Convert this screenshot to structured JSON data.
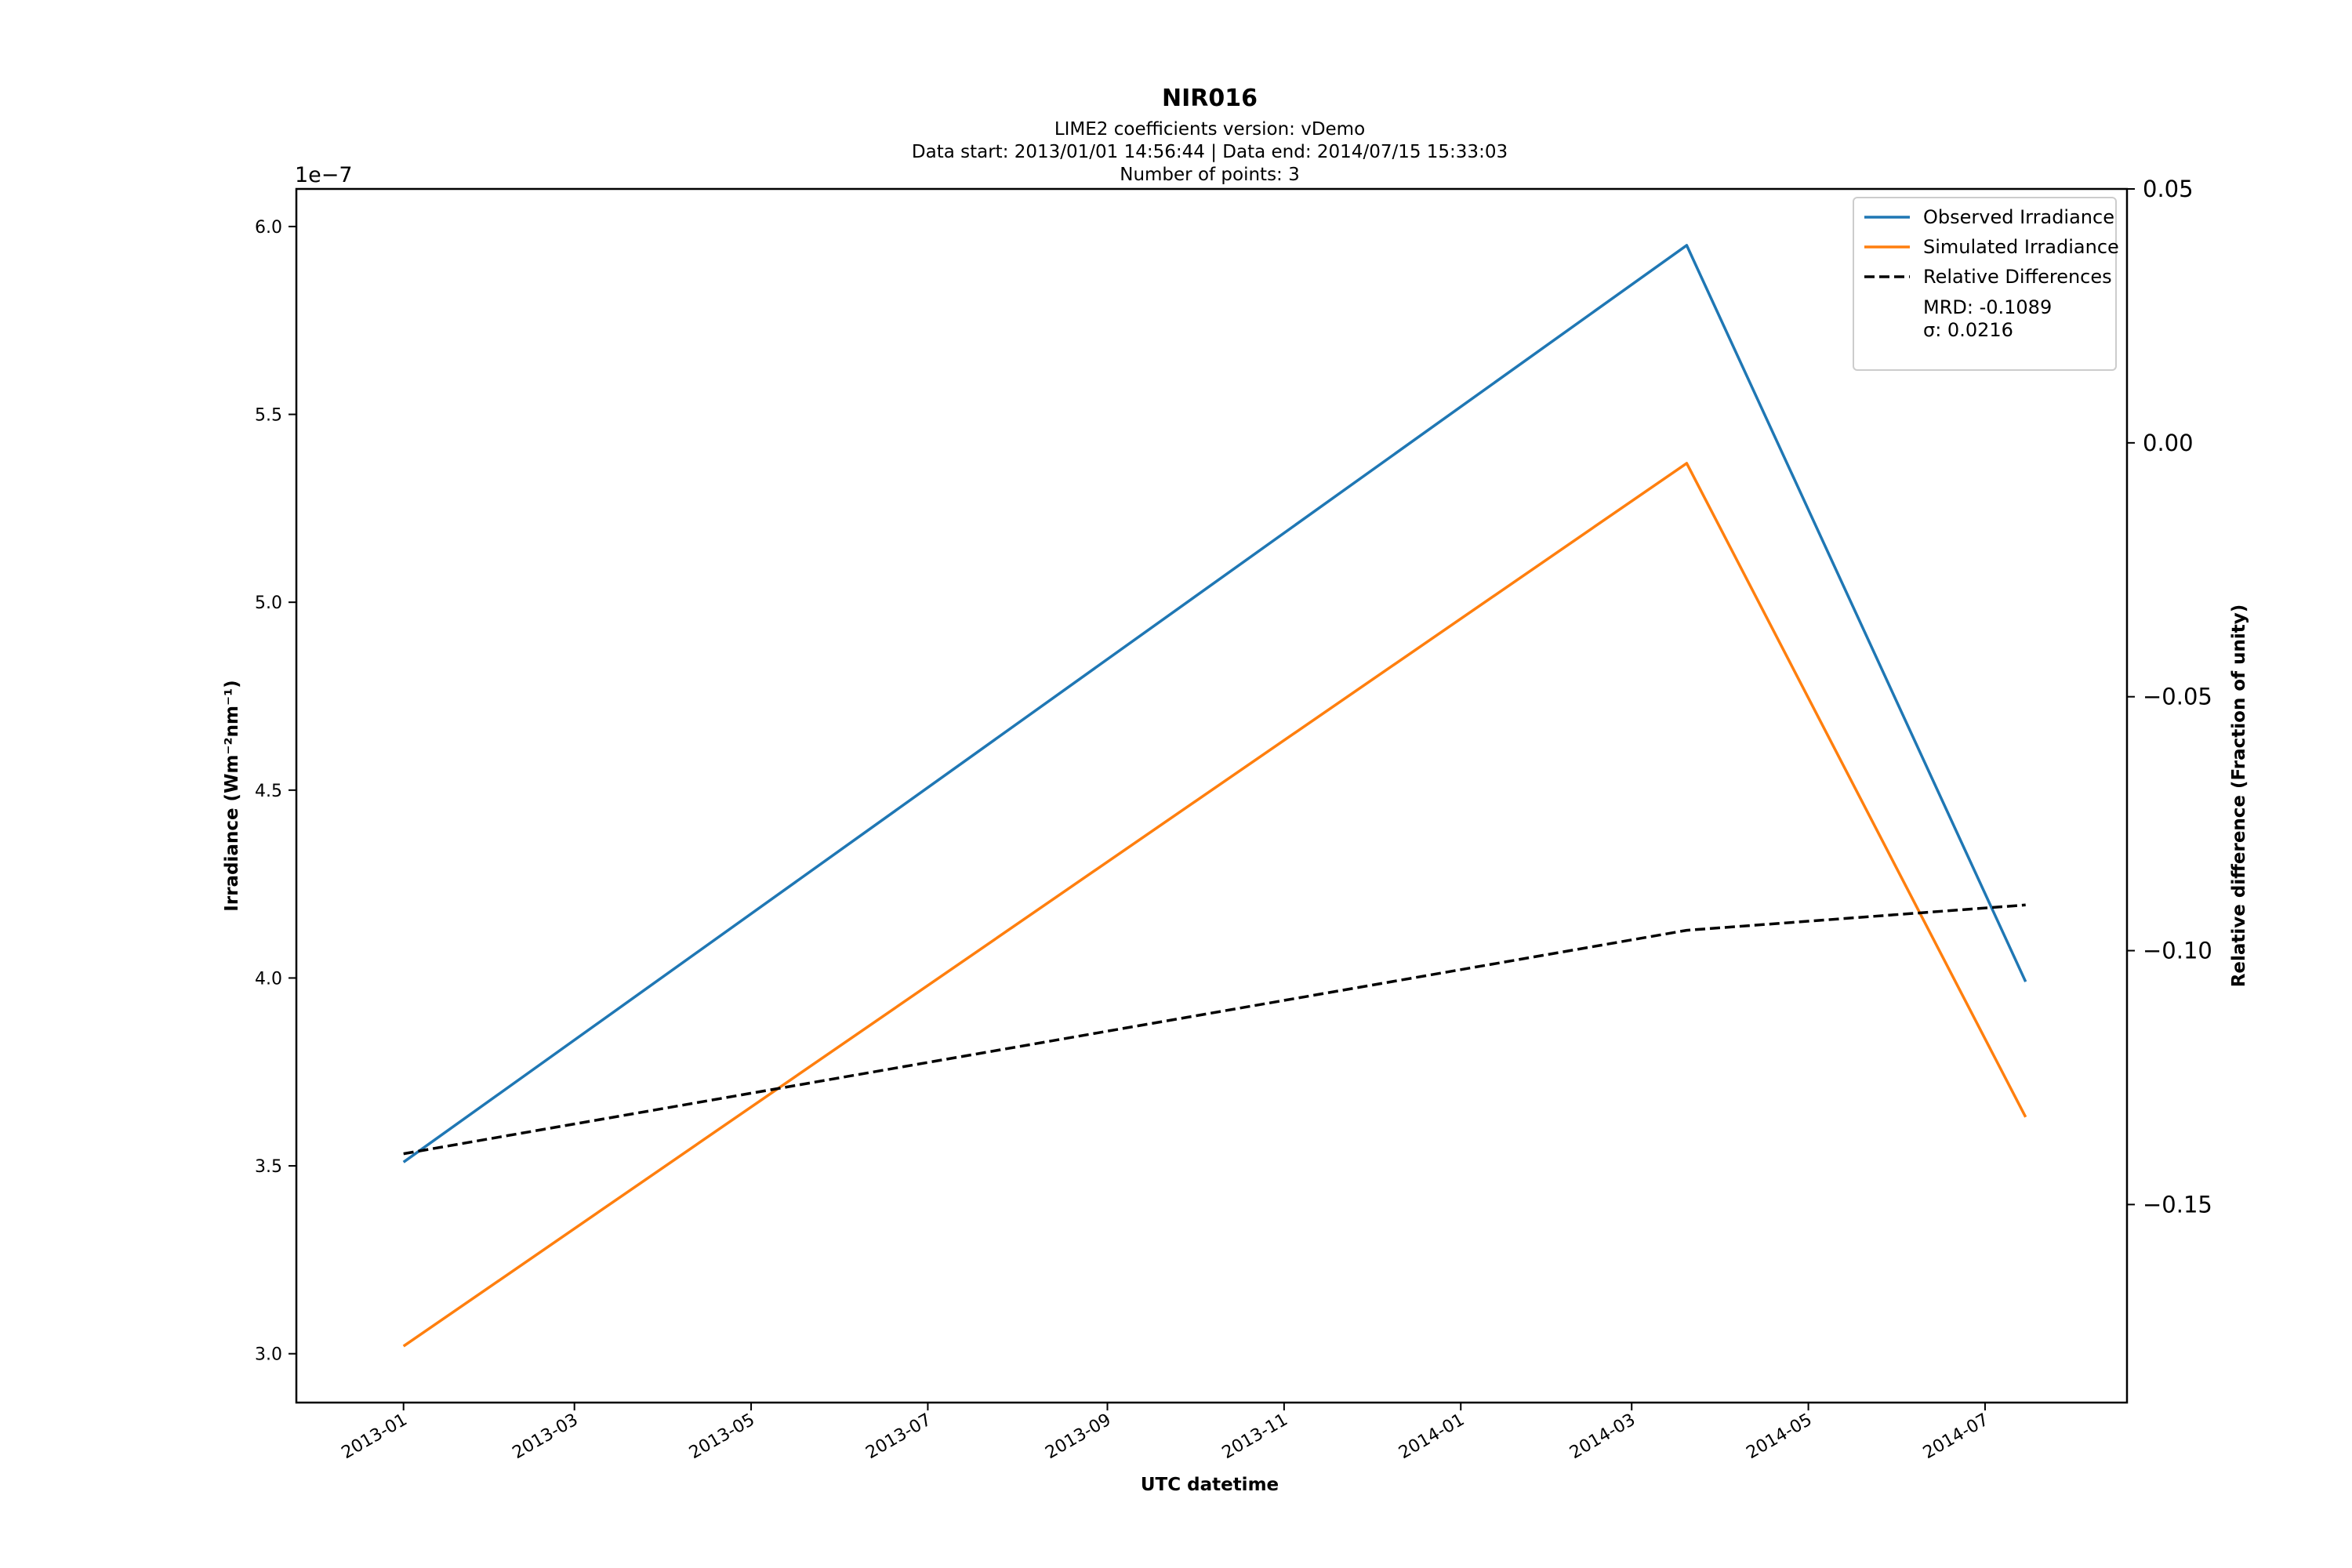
{
  "chart_data": {
    "type": "line",
    "title": "NIR016",
    "subtitle_lines": [
      "LIME2 coefficients version: vDemo",
      "Data start: 2013/01/01 14:56:44 | Data end: 2014/07/15 15:33:03",
      "Number of points: 3"
    ],
    "xlabel": "UTC datetime",
    "ylabel": "Irradiance (Wm⁻²nm⁻¹)",
    "ylabel_right": "Relative difference (Fraction of unity)",
    "y_offset_label": "1e−7",
    "x": [
      "2013-01-01",
      "2014-03-20",
      "2014-07-15"
    ],
    "x_tick_labels": [
      "2013-01",
      "2013-03",
      "2013-05",
      "2013-07",
      "2013-09",
      "2013-11",
      "2014-01",
      "2014-03",
      "2014-05",
      "2014-07"
    ],
    "x_tick_dates": [
      "2013-01-01",
      "2013-03-01",
      "2013-05-01",
      "2013-07-01",
      "2013-09-01",
      "2013-11-01",
      "2014-01-01",
      "2014-03-01",
      "2014-05-01",
      "2014-07-01"
    ],
    "xlim": [
      "2012-11-25",
      "2014-08-19"
    ],
    "ylim": [
      2.87,
      6.1
    ],
    "y_ticks": [
      3.0,
      3.5,
      4.0,
      4.5,
      5.0,
      5.5,
      6.0
    ],
    "y_tick_labels": [
      "3.0",
      "3.5",
      "4.0",
      "4.5",
      "5.0",
      "5.5",
      "6.0"
    ],
    "ylim_right": [
      -0.189,
      0.05
    ],
    "y_ticks_right": [
      -0.15,
      -0.1,
      -0.05,
      0.0,
      0.05
    ],
    "y_tick_labels_right": [
      "−0.15",
      "−0.10",
      "−0.05",
      "0.00",
      "0.05"
    ],
    "series": [
      {
        "name": "Observed Irradiance",
        "axis": "left",
        "color": "#1f77b4",
        "style": "solid",
        "values": [
          3.51,
          5.95,
          3.99
        ]
      },
      {
        "name": "Simulated Irradiance",
        "axis": "left",
        "color": "#ff7f0e",
        "style": "solid",
        "values": [
          3.02,
          5.37,
          3.63
        ]
      },
      {
        "name": "Relative Differences",
        "axis": "right",
        "color": "#000000",
        "style": "dashed",
        "values": [
          -0.14,
          -0.096,
          -0.091
        ]
      }
    ],
    "legend": {
      "position": "top-right",
      "extra_lines": [
        "MRD: -0.1089",
        "σ: 0.0216"
      ]
    },
    "grid": false
  }
}
